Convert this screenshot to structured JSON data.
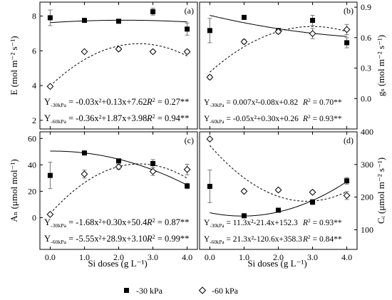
{
  "x_axis_label": "Si doses (g L⁻¹)",
  "legend": [
    {
      "marker": "filled-square",
      "label": "-30 kPa"
    },
    {
      "marker": "open-diamond",
      "label": "-60 kPa"
    }
  ],
  "chart_data": [
    {
      "type": "scatter",
      "panel_label": "(a)",
      "ylabel": "E (mol m⁻² s⁻¹)",
      "y_axis_side": "left",
      "x": [
        0.0,
        1.0,
        2.0,
        3.0,
        4.0
      ],
      "x_ticks": [
        "0.0",
        "1.0",
        "2.0",
        "3.0",
        "4.0"
      ],
      "xlim": [
        -0.3,
        4.3
      ],
      "ylim": [
        1.5,
        8.8
      ],
      "y_ticks": [
        2,
        4,
        6,
        8
      ],
      "series": [
        {
          "name": "-30 kPa",
          "marker": "filled-square",
          "values": [
            7.9,
            7.75,
            7.7,
            8.25,
            7.25
          ],
          "errors": [
            0.45,
            0.05,
            0.1,
            0.2,
            0.35
          ],
          "fit": {
            "coefficients": [
              -0.03,
              0.13,
              7.62
            ],
            "equation_subscript": "-30kPa",
            "equation": " = -0.03x²+0.13x+7.62",
            "r2": "0.27**"
          }
        },
        {
          "name": "-60 kPa",
          "marker": "open-diamond",
          "values": [
            3.95,
            5.95,
            6.1,
            5.95,
            5.95
          ],
          "errors": [
            0.05,
            0.05,
            0.1,
            0.1,
            0.1
          ],
          "fit": {
            "coefficients": [
              -0.36,
              1.87,
              3.98
            ],
            "equation_subscript": "-60kPa",
            "equation": " = -0.36x²+1.87x+3.98",
            "r2": "0.94**"
          }
        }
      ]
    },
    {
      "type": "scatter",
      "panel_label": "(b)",
      "ylabel": "gₛ (mol m⁻² s⁻¹)",
      "y_axis_side": "right",
      "x": [
        0.0,
        1.0,
        2.0,
        3.0,
        4.0
      ],
      "x_ticks": [
        "0.0",
        "1.0",
        "2.0",
        "3.0",
        "4.0"
      ],
      "xlim": [
        -0.3,
        4.3
      ],
      "ylim": [
        -0.3,
        0.95
      ],
      "y_ticks": [
        "0.0",
        "0.3",
        "0.6",
        "0.9"
      ],
      "y_tick_values": [
        0.0,
        0.3,
        0.6,
        0.9
      ],
      "series": [
        {
          "name": "-30 kPa",
          "marker": "filled-square",
          "values": [
            0.67,
            0.8,
            0.67,
            0.77,
            0.55
          ],
          "errors": [
            0.12,
            0.02,
            0.02,
            0.05,
            0.05
          ],
          "fit": {
            "coefficients": [
              0.007,
              -0.08,
              0.82
            ],
            "equation_subscript": "-30kPa",
            "equation": " = 0.007x²-0.08x+0.82",
            "r2": "0.70**"
          }
        },
        {
          "name": "-60 kPa",
          "marker": "open-diamond",
          "values": [
            0.21,
            0.56,
            0.66,
            0.64,
            0.68
          ],
          "errors": [
            0.02,
            0.02,
            0.02,
            0.05,
            0.05
          ],
          "fit": {
            "coefficients": [
              -0.05,
              0.3,
              0.26
            ],
            "equation_subscript": "-60kPa",
            "equation": " = -0.05x²+0.30x+0.26",
            "r2": "0.93**"
          }
        }
      ]
    },
    {
      "type": "scatter",
      "panel_label": "(c)",
      "ylabel": "Aₙ (μmol mol⁻¹)",
      "y_axis_side": "left",
      "x": [
        0.0,
        1.0,
        2.0,
        3.0,
        4.0
      ],
      "x_ticks": [
        "0.0",
        "1.0",
        "2.0",
        "3.0",
        "4.0"
      ],
      "xlim": [
        -0.3,
        4.3
      ],
      "ylim": [
        -24,
        65
      ],
      "y_ticks": [
        0,
        20,
        40,
        60
      ],
      "series": [
        {
          "name": "-30 kPa",
          "marker": "filled-square",
          "values": [
            32,
            49,
            43,
            41,
            24
          ],
          "errors": [
            10,
            1,
            1.5,
            3,
            2
          ],
          "fit": {
            "coefficients": [
              -1.68,
              0.3,
              50.4
            ],
            "equation_subscript": "-30kPa",
            "equation": " = -1.68x²+0.30x+50.4",
            "r2": "0.87**"
          }
        },
        {
          "name": "-60 kPa",
          "marker": "open-diamond",
          "values": [
            2.5,
            33,
            38.5,
            35,
            36.5
          ],
          "errors": [
            1,
            3,
            2,
            3,
            4
          ],
          "fit": {
            "coefficients": [
              -5.55,
              28.9,
              3.1
            ],
            "equation_subscript": "-60kPa",
            "equation": " = -5.55x²+28.9x+3.10",
            "r2": "0.99**"
          }
        }
      ]
    },
    {
      "type": "scatter",
      "panel_label": "(d)",
      "ylabel": "Cᵢ (μmol m⁻² s⁻¹)",
      "y_axis_side": "right",
      "x": [
        0.0,
        1.0,
        2.0,
        3.0,
        4.0
      ],
      "x_ticks": [
        "0.0",
        "1.0",
        "2.0",
        "3.0",
        "4.0"
      ],
      "xlim": [
        -0.3,
        4.3
      ],
      "ylim": [
        40,
        400
      ],
      "y_ticks": [
        100,
        200,
        300,
        400
      ],
      "series": [
        {
          "name": "-30 kPa",
          "marker": "filled-square",
          "values": [
            233,
            143,
            160,
            185,
            250
          ],
          "errors": [
            50,
            3,
            3,
            8,
            10
          ],
          "fit": {
            "coefficients": [
              11.3,
              -21.4,
              152.3
            ],
            "equation_subscript": "-30kPa",
            "equation": " = 11.3x²-21.4x+152.3",
            "r2": "0.93**"
          }
        },
        {
          "name": "-60 kPa",
          "marker": "open-diamond",
          "values": [
            378,
            218,
            222,
            215,
            205
          ],
          "errors": [
            3,
            5,
            5,
            5,
            12
          ],
          "fit": {
            "coefficients": [
              21.3,
              -120.6,
              358.3
            ],
            "equation_subscript": "-60kPa",
            "equation": " = 21.3x²-120.6x+358.3",
            "r2": "0.84**"
          }
        }
      ]
    }
  ]
}
